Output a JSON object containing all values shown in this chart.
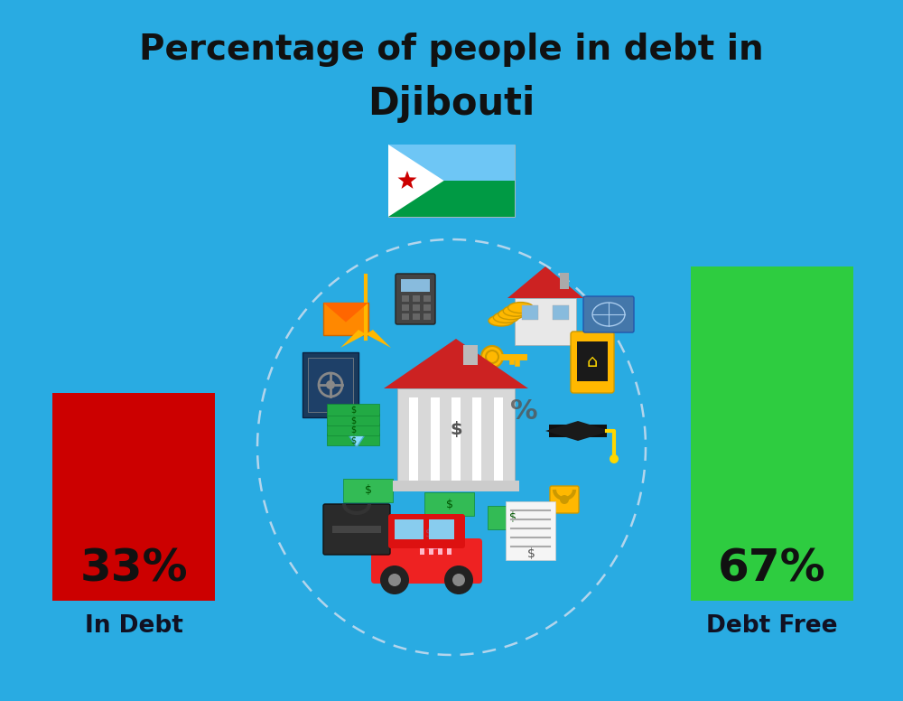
{
  "title_line1": "Percentage of people in debt in",
  "title_line2": "Djibouti",
  "background_color": "#29ABE2",
  "bar1_label": "33%",
  "bar1_color": "#CC0000",
  "bar1_category": "In Debt",
  "bar2_label": "67%",
  "bar2_color": "#2ECC40",
  "bar2_category": "Debt Free",
  "title_fontsize": 28,
  "subtitle_fontsize": 30,
  "bar_label_fontsize": 36,
  "category_fontsize": 19,
  "title_color": "#111111",
  "category_label_color": "#111122",
  "bar_text_color": "#111111",
  "flag_blue": "#6EC6F5",
  "flag_green": "#009A44",
  "flag_white": "#FFFFFF",
  "flag_red": "#CC0000",
  "circle_color": "#DDDDDD"
}
